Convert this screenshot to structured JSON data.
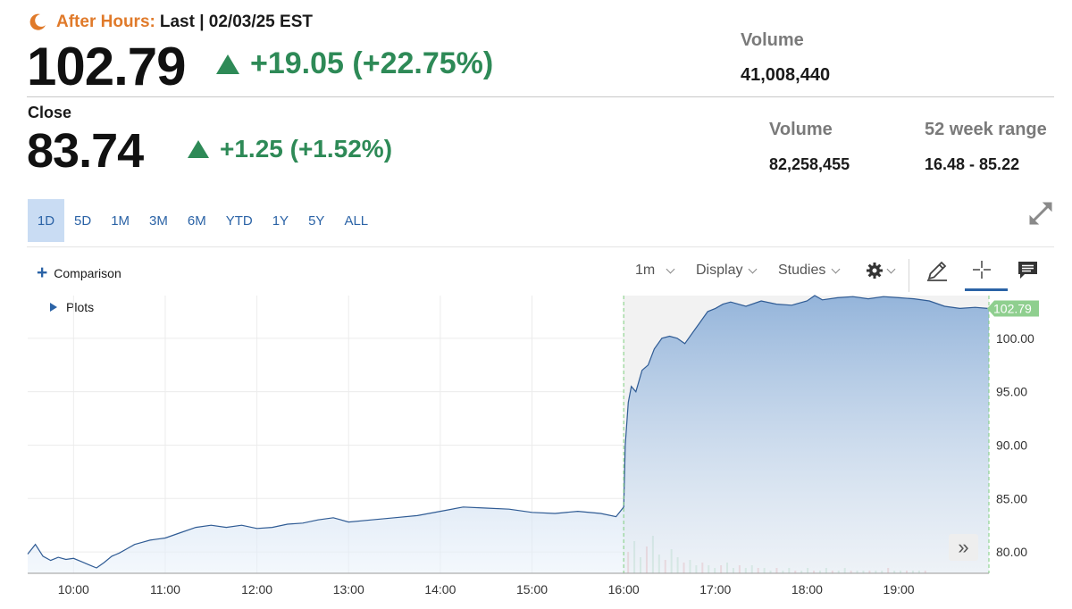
{
  "header": {
    "session_label": "After Hours:",
    "last_label": "Last | 02/03/25 EST",
    "price": "102.79",
    "change": "+19.05 (+22.75%)",
    "volume_label": "Volume",
    "volume_value": "41,008,440",
    "icons": {
      "session": "moon-icon",
      "change": "triangle-up-icon"
    },
    "colors": {
      "session": "#e07a2a",
      "up": "#2e8a57"
    }
  },
  "close": {
    "label": "Close",
    "price": "83.74",
    "change": "+1.25 (+1.52%)",
    "volume_label": "Volume",
    "volume_value": "82,258,455",
    "range_label": "52 week range",
    "range_value": "16.48 - 85.22"
  },
  "ranges": [
    "1D",
    "5D",
    "1M",
    "3M",
    "6M",
    "YTD",
    "1Y",
    "5Y",
    "ALL"
  ],
  "active_range": "1D",
  "toolbar": {
    "comparison": "Comparison",
    "plots": "Plots",
    "interval": "1m",
    "display": "Display",
    "studies": "Studies",
    "icons": [
      "gear-icon",
      "pencil-icon",
      "crosshair-icon",
      "comment-icon",
      "expand-icon"
    ]
  },
  "chart_data": {
    "type": "area",
    "x_label_ticks": [
      "10:00",
      "11:00",
      "12:00",
      "13:00",
      "14:00",
      "15:00",
      "16:00",
      "17:00",
      "18:00",
      "19:00"
    ],
    "y_ticks": [
      "80.00",
      "85.00",
      "90.00",
      "95.00",
      "100.00"
    ],
    "ylim": [
      78,
      104
    ],
    "xlim": [
      "09:30",
      "19:59"
    ],
    "last_price_label": "102.79",
    "session_divider": "16:00",
    "grid": true,
    "series": [
      {
        "x": [
          "09:30",
          "09:35",
          "09:40",
          "09:45",
          "09:50",
          "09:55",
          "10:00",
          "10:05",
          "10:10",
          "10:15",
          "10:20",
          "10:25",
          "10:30",
          "10:35",
          "10:40",
          "10:45",
          "10:50",
          "10:55",
          "11:00",
          "11:10",
          "11:20",
          "11:30",
          "11:40",
          "11:50",
          "12:00",
          "12:10",
          "12:20",
          "12:30",
          "12:40",
          "12:50",
          "13:00",
          "13:15",
          "13:30",
          "13:45",
          "14:00",
          "14:15",
          "14:30",
          "14:45",
          "15:00",
          "15:15",
          "15:30",
          "15:45",
          "15:55",
          "16:00",
          "16:01",
          "16:03",
          "16:05",
          "16:08",
          "16:12",
          "16:16",
          "16:20",
          "16:25",
          "16:30",
          "16:35",
          "16:40",
          "16:45",
          "16:50",
          "16:55",
          "17:00",
          "17:05",
          "17:10",
          "17:20",
          "17:30",
          "17:40",
          "17:50",
          "18:00",
          "18:05",
          "18:10",
          "18:20",
          "18:30",
          "18:40",
          "18:50",
          "19:00",
          "19:10",
          "19:20",
          "19:30",
          "19:40",
          "19:50",
          "19:59"
        ],
        "values": [
          79.8,
          80.7,
          79.6,
          79.2,
          79.5,
          79.3,
          79.4,
          79.1,
          78.8,
          78.5,
          79.0,
          79.6,
          79.9,
          80.3,
          80.7,
          80.9,
          81.1,
          81.2,
          81.3,
          81.8,
          82.3,
          82.5,
          82.3,
          82.5,
          82.2,
          82.3,
          82.6,
          82.7,
          83.0,
          83.2,
          82.8,
          83.0,
          83.2,
          83.4,
          83.8,
          84.2,
          84.1,
          84.0,
          83.7,
          83.6,
          83.8,
          83.6,
          83.3,
          84.2,
          90.0,
          94.0,
          95.5,
          95.0,
          97.0,
          97.5,
          99.0,
          100.0,
          100.2,
          100.0,
          99.5,
          100.5,
          101.5,
          102.5,
          102.8,
          103.2,
          103.4,
          103.0,
          103.5,
          103.2,
          103.1,
          103.5,
          104.0,
          103.6,
          103.8,
          103.9,
          103.7,
          103.9,
          103.8,
          103.7,
          103.5,
          103.0,
          102.8,
          102.9,
          102.79
        ]
      }
    ],
    "volume_bars_after_hours": [
      8,
      12,
      6,
      10,
      14,
      7,
      5,
      9,
      6,
      4,
      5,
      3,
      4,
      3,
      2,
      3,
      4,
      2,
      3,
      2,
      3,
      2,
      2,
      1,
      2,
      1,
      2,
      1,
      1,
      2,
      1,
      1,
      2,
      1,
      1,
      2,
      1,
      1,
      1,
      1,
      1,
      1,
      2,
      1,
      1,
      1,
      1,
      1,
      1
    ]
  }
}
